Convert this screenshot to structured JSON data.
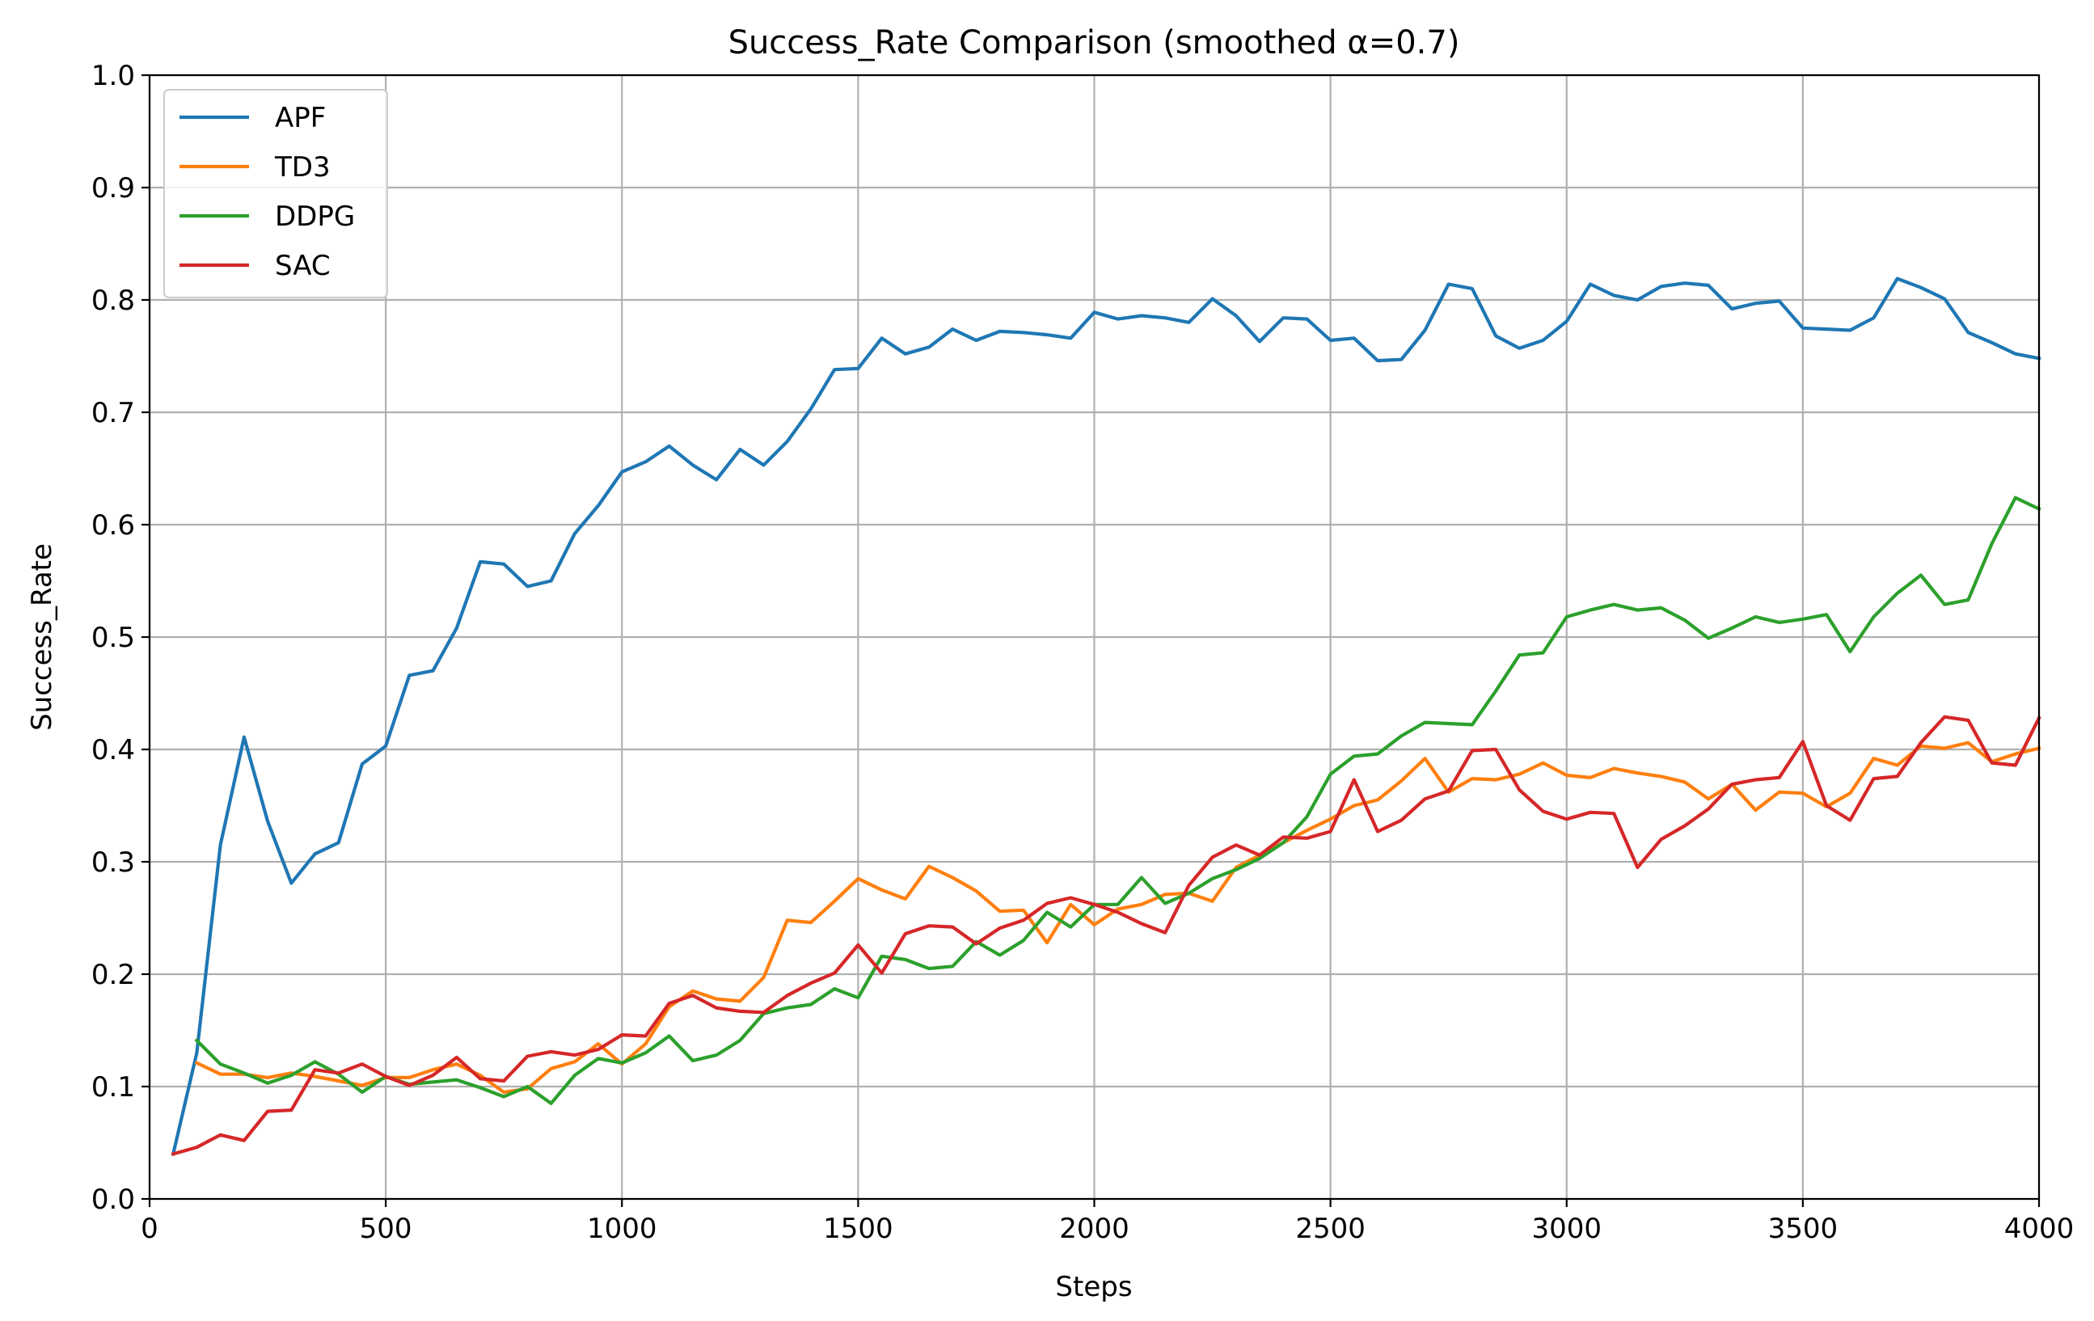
{
  "chart_data": {
    "type": "line",
    "title": "Success_Rate Comparison (smoothed α=0.7)",
    "xlabel": "Steps",
    "ylabel": "Success_Rate",
    "xlim": [
      0,
      4000
    ],
    "ylim": [
      0,
      1.0
    ],
    "xticks": [
      0,
      500,
      1000,
      1500,
      2000,
      2500,
      3000,
      3500,
      4000
    ],
    "xtick_labels": [
      "0",
      "500",
      "1000",
      "1500",
      "2000",
      "2500",
      "3000",
      "3500",
      "4000"
    ],
    "yticks": [
      0,
      0.1,
      0.2,
      0.3,
      0.4,
      0.5,
      0.6,
      0.7,
      0.8,
      0.9,
      1.0
    ],
    "ytick_labels": [
      "0.0",
      "0.1",
      "0.2",
      "0.3",
      "0.4",
      "0.5",
      "0.6",
      "0.7",
      "0.8",
      "0.9",
      "1.0"
    ],
    "grid": true,
    "legend_position": "top-left",
    "series": [
      {
        "name": "APF",
        "color": "#1f77b4",
        "x": [
          50,
          100,
          150,
          200,
          250,
          300,
          350,
          400,
          450,
          500,
          550,
          600,
          650,
          700,
          750,
          800,
          850,
          900,
          950,
          1000,
          1050,
          1100,
          1150,
          1200,
          1250,
          1300,
          1350,
          1400,
          1450,
          1500,
          1550,
          1600,
          1650,
          1700,
          1750,
          1800,
          1850,
          1900,
          1950,
          2000,
          2050,
          2100,
          2150,
          2200,
          2250,
          2300,
          2350,
          2400,
          2450,
          2500,
          2550,
          2600,
          2650,
          2700,
          2750,
          2800,
          2850,
          2900,
          2950,
          3000,
          3050,
          3100,
          3150,
          3200,
          3250,
          3300,
          3350,
          3400,
          3450,
          3500,
          3550,
          3600,
          3650,
          3700,
          3750,
          3800,
          3850,
          3900,
          3950,
          4000
        ],
        "y": [
          0.04,
          0.13,
          0.315,
          0.411,
          0.336,
          0.281,
          0.307,
          0.317,
          0.387,
          0.403,
          0.466,
          0.47,
          0.508,
          0.567,
          0.565,
          0.545,
          0.55,
          0.592,
          0.617,
          0.647,
          0.656,
          0.67,
          0.653,
          0.64,
          0.667,
          0.653,
          0.674,
          0.703,
          0.738,
          0.739,
          0.766,
          0.752,
          0.758,
          0.774,
          0.764,
          0.772,
          0.771,
          0.769,
          0.766,
          0.789,
          0.783,
          0.786,
          0.784,
          0.78,
          0.801,
          0.786,
          0.763,
          0.784,
          0.783,
          0.764,
          0.766,
          0.746,
          0.747,
          0.773,
          0.814,
          0.81,
          0.768,
          0.757,
          0.764,
          0.781,
          0.814,
          0.804,
          0.8,
          0.812,
          0.815,
          0.813,
          0.792,
          0.797,
          0.799,
          0.775,
          0.774,
          0.773,
          0.784,
          0.819,
          0.811,
          0.801,
          0.771,
          0.762,
          0.752,
          0.748
        ]
      },
      {
        "name": "TD3",
        "color": "#ff7f0e",
        "x": [
          100,
          150,
          200,
          250,
          300,
          350,
          400,
          450,
          500,
          550,
          600,
          650,
          700,
          750,
          800,
          850,
          900,
          950,
          1000,
          1050,
          1100,
          1150,
          1200,
          1250,
          1300,
          1350,
          1400,
          1450,
          1500,
          1550,
          1600,
          1650,
          1700,
          1750,
          1800,
          1850,
          1900,
          1950,
          2000,
          2050,
          2100,
          2150,
          2200,
          2250,
          2300,
          2350,
          2400,
          2450,
          2500,
          2550,
          2600,
          2650,
          2700,
          2750,
          2800,
          2850,
          2900,
          2950,
          3000,
          3050,
          3100,
          3150,
          3200,
          3250,
          3300,
          3350,
          3400,
          3450,
          3500,
          3550,
          3600,
          3650,
          3700,
          3750,
          3800,
          3850,
          3900,
          3950,
          4000
        ],
        "y": [
          0.121,
          0.111,
          0.111,
          0.108,
          0.112,
          0.109,
          0.105,
          0.101,
          0.108,
          0.108,
          0.115,
          0.12,
          0.11,
          0.095,
          0.098,
          0.116,
          0.122,
          0.138,
          0.12,
          0.138,
          0.171,
          0.185,
          0.178,
          0.176,
          0.197,
          0.248,
          0.246,
          0.265,
          0.285,
          0.275,
          0.267,
          0.296,
          0.286,
          0.274,
          0.256,
          0.257,
          0.228,
          0.262,
          0.244,
          0.258,
          0.262,
          0.271,
          0.272,
          0.265,
          0.295,
          0.306,
          0.317,
          0.328,
          0.338,
          0.35,
          0.355,
          0.372,
          0.392,
          0.362,
          0.374,
          0.373,
          0.378,
          0.388,
          0.377,
          0.375,
          0.383,
          0.379,
          0.376,
          0.371,
          0.356,
          0.369,
          0.346,
          0.362,
          0.361,
          0.349,
          0.361,
          0.392,
          0.386,
          0.403,
          0.401,
          0.406,
          0.389,
          0.396,
          0.401
        ]
      },
      {
        "name": "DDPG",
        "color": "#2ca02c",
        "x": [
          100,
          150,
          200,
          250,
          300,
          350,
          400,
          450,
          500,
          550,
          600,
          650,
          700,
          750,
          800,
          850,
          900,
          950,
          1000,
          1050,
          1100,
          1150,
          1200,
          1250,
          1300,
          1350,
          1400,
          1450,
          1500,
          1550,
          1600,
          1650,
          1700,
          1750,
          1800,
          1850,
          1900,
          1950,
          2000,
          2050,
          2100,
          2150,
          2200,
          2250,
          2300,
          2350,
          2400,
          2450,
          2500,
          2550,
          2600,
          2650,
          2700,
          2750,
          2800,
          2850,
          2900,
          2950,
          3000,
          3050,
          3100,
          3150,
          3200,
          3250,
          3300,
          3350,
          3400,
          3450,
          3500,
          3550,
          3600,
          3650,
          3700,
          3750,
          3800,
          3850,
          3900,
          3950,
          4000
        ],
        "y": [
          0.141,
          0.12,
          0.112,
          0.103,
          0.11,
          0.122,
          0.111,
          0.095,
          0.109,
          0.102,
          0.104,
          0.106,
          0.099,
          0.091,
          0.1,
          0.085,
          0.11,
          0.125,
          0.121,
          0.13,
          0.145,
          0.123,
          0.128,
          0.141,
          0.165,
          0.17,
          0.173,
          0.187,
          0.179,
          0.216,
          0.213,
          0.205,
          0.207,
          0.229,
          0.217,
          0.23,
          0.255,
          0.242,
          0.262,
          0.262,
          0.286,
          0.263,
          0.272,
          0.285,
          0.293,
          0.303,
          0.317,
          0.34,
          0.378,
          0.394,
          0.396,
          0.412,
          0.424,
          0.423,
          0.422,
          0.452,
          0.484,
          0.486,
          0.518,
          0.524,
          0.529,
          0.524,
          0.526,
          0.515,
          0.499,
          0.508,
          0.518,
          0.513,
          0.516,
          0.52,
          0.487,
          0.518,
          0.539,
          0.555,
          0.529,
          0.533,
          0.583,
          0.624,
          0.614
        ]
      },
      {
        "name": "SAC",
        "color": "#d62728",
        "x": [
          50,
          100,
          150,
          200,
          250,
          300,
          350,
          400,
          450,
          500,
          550,
          600,
          650,
          700,
          750,
          800,
          850,
          900,
          950,
          1000,
          1050,
          1100,
          1150,
          1200,
          1250,
          1300,
          1350,
          1400,
          1450,
          1500,
          1550,
          1600,
          1650,
          1700,
          1750,
          1800,
          1850,
          1900,
          1950,
          2000,
          2050,
          2100,
          2150,
          2200,
          2250,
          2300,
          2350,
          2400,
          2450,
          2500,
          2550,
          2600,
          2650,
          2700,
          2750,
          2800,
          2850,
          2900,
          2950,
          3000,
          3050,
          3100,
          3150,
          3200,
          3250,
          3300,
          3350,
          3400,
          3450,
          3500,
          3550,
          3600,
          3650,
          3700,
          3750,
          3800,
          3850,
          3900,
          3950,
          4000
        ],
        "y": [
          0.04,
          0.046,
          0.057,
          0.052,
          0.078,
          0.079,
          0.115,
          0.112,
          0.12,
          0.109,
          0.101,
          0.11,
          0.126,
          0.107,
          0.105,
          0.127,
          0.131,
          0.128,
          0.133,
          0.146,
          0.145,
          0.174,
          0.181,
          0.17,
          0.167,
          0.166,
          0.181,
          0.192,
          0.201,
          0.226,
          0.201,
          0.236,
          0.243,
          0.242,
          0.227,
          0.241,
          0.248,
          0.263,
          0.268,
          0.262,
          0.255,
          0.245,
          0.237,
          0.279,
          0.304,
          0.315,
          0.306,
          0.322,
          0.321,
          0.327,
          0.373,
          0.327,
          0.337,
          0.356,
          0.363,
          0.399,
          0.4,
          0.364,
          0.345,
          0.338,
          0.344,
          0.343,
          0.295,
          0.32,
          0.332,
          0.347,
          0.369,
          0.373,
          0.375,
          0.407,
          0.35,
          0.337,
          0.374,
          0.376,
          0.406,
          0.429,
          0.426,
          0.388,
          0.386,
          0.428
        ]
      }
    ]
  }
}
